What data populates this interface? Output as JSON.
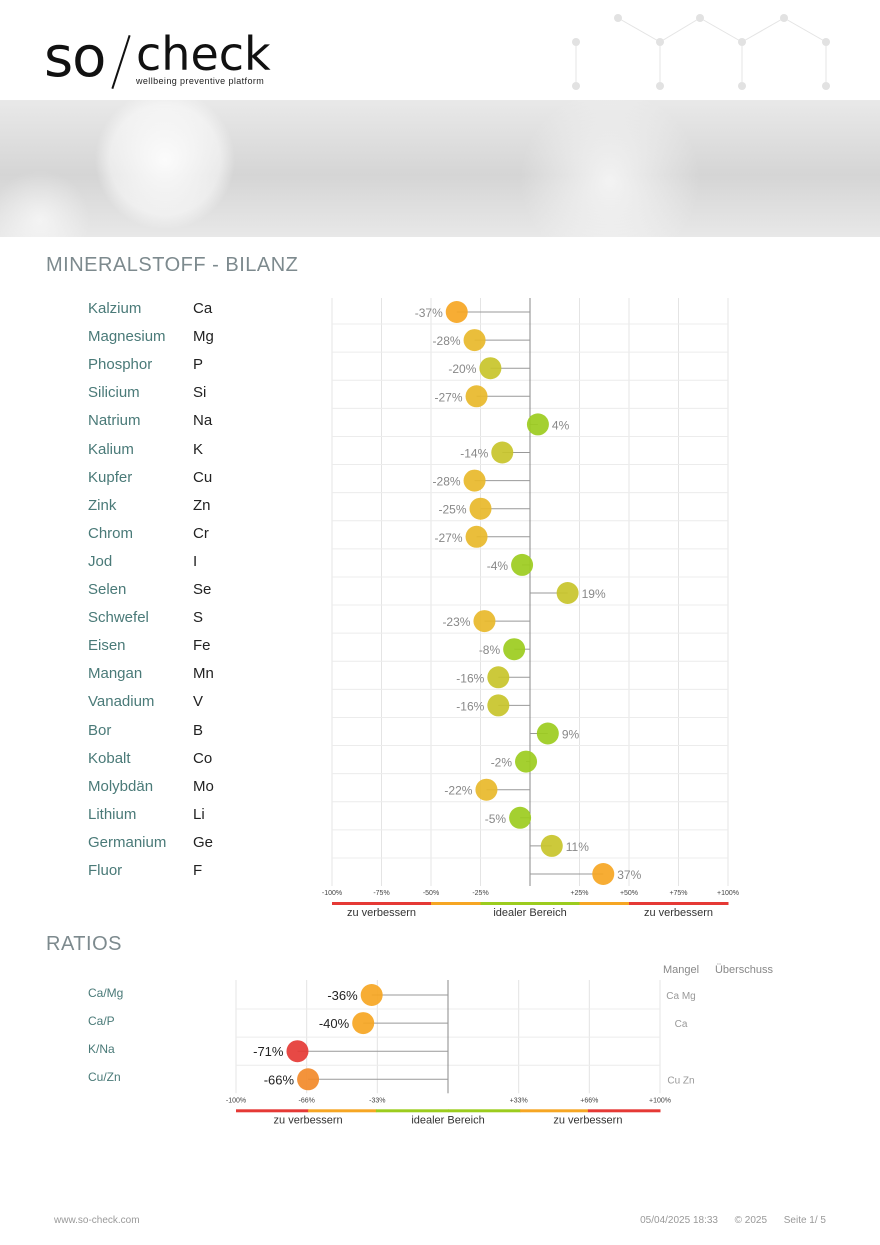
{
  "brand": {
    "so": "so",
    "check": "check",
    "tagline": "wellbeing preventive platform"
  },
  "minerals_title": "MINERALSTOFF - BILANZ",
  "ratios_title": "RATIOS",
  "colors": {
    "green": "#9ccc1e",
    "yellow_green": "#c8c42a",
    "yellow": "#e8b92a",
    "orange": "#f6a623",
    "deep_orange": "#f28a2a",
    "red": "#e53935"
  },
  "scale_labels": [
    "zu verbessern",
    "idealer Bereich",
    "zu verbessern"
  ],
  "ratio_header": {
    "mangel": "Mangel",
    "ueberschuss": "Überschuss"
  },
  "footer": {
    "website": "www.so-check.com",
    "date": "05/04/2025 18:33",
    "copyright": "© 2025",
    "page": "Seite 1/ 5"
  },
  "chart_data": [
    {
      "type": "scatter",
      "title": "MINERALSTOFF - BILANZ",
      "xlim": [
        -100,
        100
      ],
      "x_ticks": [
        "-100%",
        "-75%",
        "-50%",
        "-25%",
        "",
        "+25%",
        "+50%",
        "+75%",
        "+100%"
      ],
      "categories": [
        "Kalzium",
        "Magnesium",
        "Phosphor",
        "Silicium",
        "Natrium",
        "Kalium",
        "Kupfer",
        "Zink",
        "Chrom",
        "Jod",
        "Selen",
        "Schwefel",
        "Eisen",
        "Mangan",
        "Vanadium",
        "Bor",
        "Kobalt",
        "Molybdän",
        "Lithium",
        "Germanium",
        "Fluor"
      ],
      "symbols": [
        "Ca",
        "Mg",
        "P",
        "Si",
        "Na",
        "K",
        "Cu",
        "Zn",
        "Cr",
        "I",
        "Se",
        "S",
        "Fe",
        "Mn",
        "V",
        "B",
        "Co",
        "Mo",
        "Li",
        "Ge",
        "F"
      ],
      "values": [
        -37,
        -28,
        -20,
        -27,
        4,
        -14,
        -28,
        -25,
        -27,
        -4,
        19,
        -23,
        -8,
        -16,
        -16,
        9,
        -2,
        -22,
        -5,
        11,
        37
      ],
      "value_labels": [
        "-37%",
        "-28%",
        "-20%",
        "-27%",
        "4%",
        "-14%",
        "-28%",
        "-25%",
        "-27%",
        "-4%",
        "19%",
        "-23%",
        "-8%",
        "-16%",
        "-16%",
        "9%",
        "-2%",
        "-22%",
        "-5%",
        "11%",
        "37%"
      ]
    },
    {
      "type": "scatter",
      "title": "RATIOS",
      "xlim": [
        -100,
        100
      ],
      "x_ticks": [
        "-100%",
        "-66%",
        "-33%",
        "",
        "+33%",
        "+66%",
        "+100%"
      ],
      "categories": [
        "Ca/Mg",
        "Ca/P",
        "K/Na",
        "Cu/Zn"
      ],
      "values": [
        -36,
        -40,
        -71,
        -66
      ],
      "value_labels": [
        "-36%",
        "-40%",
        "-71%",
        "-66%"
      ],
      "mangel": [
        "Ca Mg",
        "Ca",
        "",
        "Cu Zn"
      ],
      "ueberschuss": [
        "",
        "",
        "",
        ""
      ]
    }
  ]
}
